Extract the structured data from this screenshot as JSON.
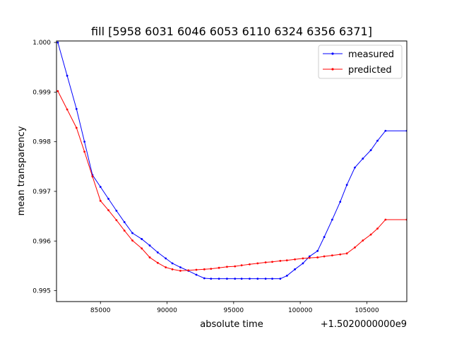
{
  "chart_data": {
    "type": "line",
    "title": "fill [5958 6031 6046 6053 6110 6324 6356 6371]",
    "xlabel": "absolute time",
    "ylabel": "mean transparency",
    "x_offset_label": "+1.5020000000e9",
    "xlim": [
      81700,
      108000
    ],
    "ylim": [
      0.99478,
      1.00003
    ],
    "x_ticks": [
      85000,
      90000,
      95000,
      100000,
      105000
    ],
    "x_tick_labels": [
      "85000",
      "90000",
      "95000",
      "100000",
      "105000"
    ],
    "y_ticks": [
      0.995,
      0.996,
      0.997,
      0.998,
      0.999,
      1.0
    ],
    "y_tick_labels": [
      "0.995",
      "0.996",
      "0.997",
      "0.998",
      "0.999",
      "1.000"
    ],
    "grid": false,
    "legend_position": "top-right",
    "series": [
      {
        "name": "measured",
        "color": "#0000ff",
        "x": [
          81800,
          82500,
          83200,
          83800,
          84400,
          85000,
          85600,
          86200,
          86800,
          87400,
          88100,
          88700,
          89300,
          89900,
          90400,
          91000,
          91600,
          92200,
          92800,
          93300,
          93900,
          94500,
          95100,
          95600,
          96200,
          96800,
          97400,
          97900,
          98500,
          99000,
          99600,
          100200,
          100700,
          101300,
          101800,
          102400,
          103000,
          103500,
          104100,
          104700,
          105300,
          105800,
          106400,
          108000
        ],
        "y": [
          1.0,
          0.99933,
          0.99866,
          0.998,
          0.99733,
          0.99709,
          0.99685,
          0.99661,
          0.99638,
          0.99616,
          0.99604,
          0.99591,
          0.99577,
          0.99565,
          0.99555,
          0.99547,
          0.9954,
          0.99532,
          0.99525,
          0.99524,
          0.99524,
          0.99524,
          0.99524,
          0.99524,
          0.99524,
          0.99524,
          0.99524,
          0.99524,
          0.99524,
          0.9953,
          0.99543,
          0.99555,
          0.99569,
          0.9958,
          0.99608,
          0.99643,
          0.99679,
          0.99713,
          0.99748,
          0.99766,
          0.99783,
          0.99802,
          0.99822,
          0.99822
        ]
      },
      {
        "name": "predicted",
        "color": "#ff0000",
        "x": [
          81800,
          82500,
          83200,
          83800,
          84400,
          85000,
          85600,
          86200,
          86800,
          87400,
          88100,
          88700,
          89300,
          89900,
          90400,
          91000,
          91600,
          92200,
          92800,
          93300,
          93900,
          94500,
          95100,
          95600,
          96200,
          96800,
          97400,
          97900,
          98500,
          99000,
          99600,
          100200,
          100700,
          101300,
          101800,
          102400,
          103000,
          103500,
          104100,
          104700,
          105300,
          105800,
          106400,
          108000
        ],
        "y": [
          0.99902,
          0.99865,
          0.99828,
          0.9978,
          0.9973,
          0.99681,
          0.99662,
          0.99642,
          0.99621,
          0.99601,
          0.99585,
          0.99567,
          0.99556,
          0.99547,
          0.99543,
          0.9954,
          0.99541,
          0.99542,
          0.99543,
          0.99544,
          0.99546,
          0.99548,
          0.99549,
          0.99551,
          0.99553,
          0.99555,
          0.99557,
          0.99558,
          0.9956,
          0.99561,
          0.99563,
          0.99565,
          0.99566,
          0.99567,
          0.99569,
          0.99571,
          0.99573,
          0.99575,
          0.99587,
          0.99601,
          0.99613,
          0.99625,
          0.99643,
          0.99643
        ]
      }
    ]
  }
}
